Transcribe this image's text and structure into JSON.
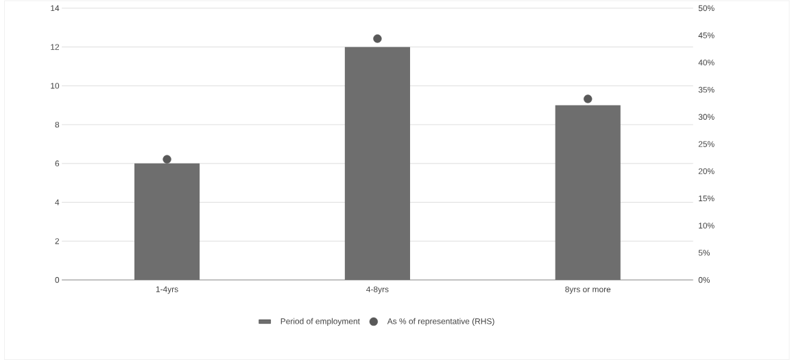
{
  "chart_data": {
    "type": "bar",
    "categories": [
      "1-4yrs",
      "4-8yrs",
      "8yrs  or more"
    ],
    "series": [
      {
        "name": "Period of employment",
        "color": "#6e6e6e",
        "values": [
          6,
          12,
          9
        ]
      },
      {
        "name": "As % of representative (RHS)",
        "type": "scatter",
        "axis": "y2",
        "color": "#595959",
        "values": [
          22.2,
          44.4,
          33.3
        ]
      }
    ],
    "ylim": [
      0,
      14
    ],
    "yticks": [
      0,
      2,
      4,
      6,
      8,
      10,
      12,
      14
    ],
    "y2lim": [
      0,
      50
    ],
    "y2ticks": [
      {
        "value": 0,
        "label": "0%"
      },
      {
        "value": 5,
        "label": "5%"
      },
      {
        "value": 10,
        "label": "10%"
      },
      {
        "value": 15,
        "label": "15%"
      },
      {
        "value": 20,
        "label": "20%"
      },
      {
        "value": 25,
        "label": "25%"
      },
      {
        "value": 30,
        "label": "30%"
      },
      {
        "value": 35,
        "label": "35%"
      },
      {
        "value": 40,
        "label": "40%"
      },
      {
        "value": 45,
        "label": "45%"
      },
      {
        "value": 50,
        "label": "50%"
      }
    ],
    "grid": "y",
    "legend": "bottom",
    "marker": "circle"
  }
}
